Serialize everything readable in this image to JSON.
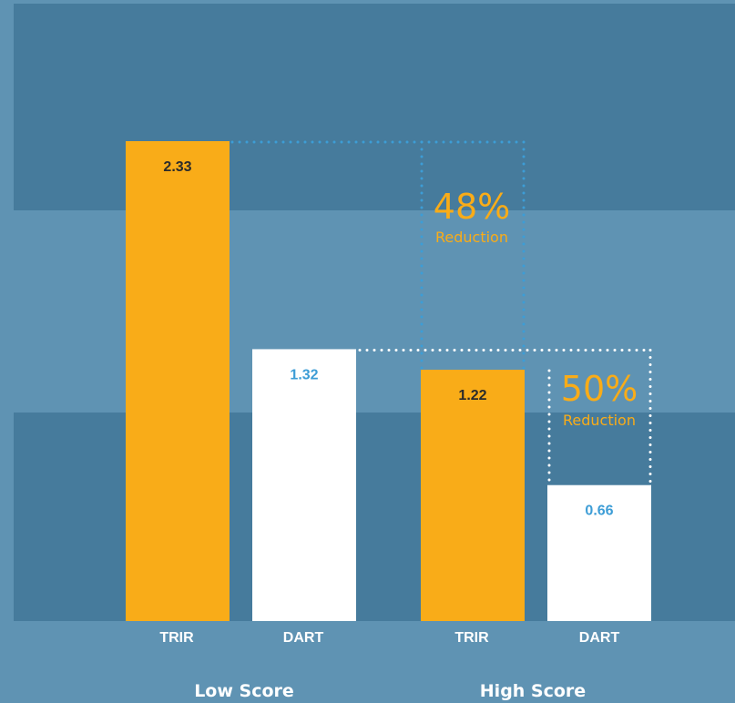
{
  "chart_data": {
    "type": "bar",
    "groups": [
      "Low Score",
      "High Score"
    ],
    "categories": [
      "TRIR",
      "DART",
      "TRIR",
      "DART"
    ],
    "values": [
      2.33,
      1.32,
      1.22,
      0.66
    ],
    "value_labels": [
      "2.33",
      "1.32",
      "1.22",
      "0.66"
    ],
    "ylim": [
      0,
      2.33
    ],
    "annotations": [
      {
        "percent": "48%",
        "text": "Reduction"
      },
      {
        "percent": "50%",
        "text": "Reduction"
      }
    ],
    "title": "",
    "xlabel": "",
    "ylabel": "",
    "grid": false
  },
  "colors": {
    "trir": "#f9ac18",
    "dart": "#ffffff",
    "trir_label": "#2b2b2b",
    "dart_label": "#3d9dd6",
    "band_dark": "#467b9c",
    "band_light": "#5f93b3",
    "dotted_blue": "#3d9dd6",
    "dotted_white": "#ffffff"
  }
}
